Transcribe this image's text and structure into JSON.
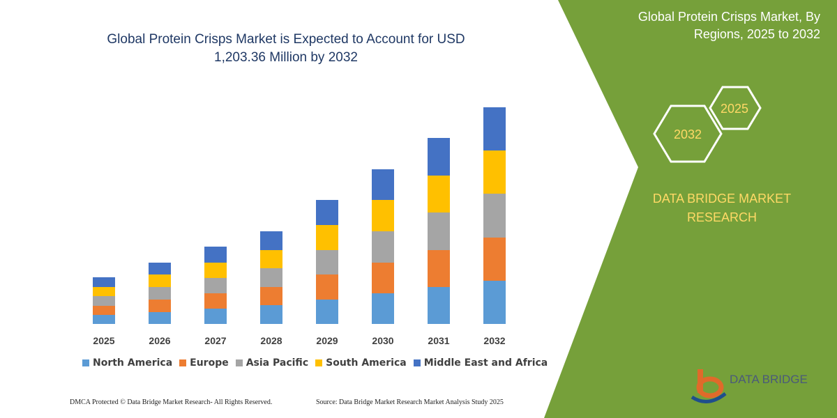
{
  "chart_data": {
    "type": "bar",
    "stacked": true,
    "title": "Global Protein Crisps Market is Expected to Account for USD 1,203.36 Million by 2032",
    "categories": [
      "2025",
      "2026",
      "2027",
      "2028",
      "2029",
      "2030",
      "2031",
      "2032"
    ],
    "series": [
      {
        "name": "North America",
        "color": "#5b9bd5",
        "values": [
          13,
          17,
          22,
          27,
          35,
          44,
          53,
          62
        ]
      },
      {
        "name": "Europe",
        "color": "#ed7d31",
        "values": [
          13,
          18,
          22,
          26,
          36,
          44,
          53,
          62
        ]
      },
      {
        "name": "Asia Pacific",
        "color": "#a5a5a5",
        "values": [
          14,
          18,
          22,
          27,
          35,
          45,
          54,
          63
        ]
      },
      {
        "name": "South America",
        "color": "#ffc000",
        "values": [
          13,
          18,
          22,
          26,
          36,
          45,
          53,
          62
        ]
      },
      {
        "name": "Middle East and Africa",
        "color": "#4472c4",
        "values": [
          14,
          17,
          23,
          27,
          36,
          44,
          54,
          62
        ]
      }
    ]
  },
  "panel": {
    "title": "Global Protein Crisps Market, By Regions, 2025 to 2032",
    "hexagons": [
      "2032",
      "2025"
    ],
    "brand": "DATA BRIDGE MARKET RESEARCH"
  },
  "logo": "DATA BRIDGE",
  "footer": {
    "left": "DMCA Protected © Data Bridge Market Research- All Rights Reserved.",
    "right": "Source: Data Bridge Market Research Market Analysis Study 2025"
  }
}
